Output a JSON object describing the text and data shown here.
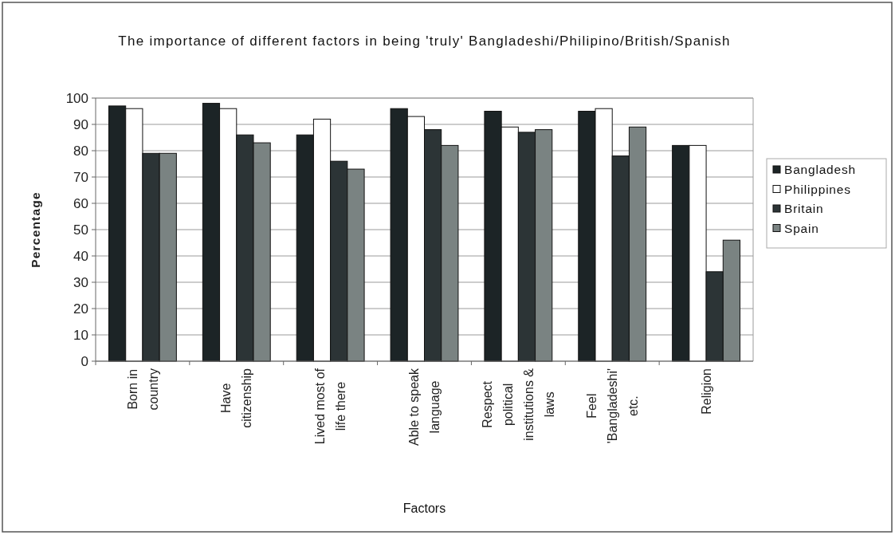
{
  "chart_data": {
    "type": "bar",
    "title": "The importance of different factors in being 'truly' Bangladeshi/Philipino/British/Spanish",
    "xlabel": "Factors",
    "ylabel": "Percentage",
    "categories": [
      "Born in\ncountry",
      "Have\ncitizenship",
      "Lived most of\nlife there",
      "Able to speak\nlanguage",
      "Respect\npolitical\ninstitutions &\nlaws",
      "Feel\n'Bangladeshi'\netc.",
      "Religion"
    ],
    "series": [
      {
        "name": "Bangladesh",
        "color": "#1c2426",
        "values": [
          97,
          98,
          86,
          96,
          95,
          95,
          82
        ]
      },
      {
        "name": "Philippines",
        "color": "#ffffff",
        "values": [
          96,
          96,
          92,
          93,
          89,
          96,
          82
        ]
      },
      {
        "name": "Britain",
        "color": "#2c3436",
        "values": [
          79,
          86,
          76,
          88,
          87,
          78,
          34
        ]
      },
      {
        "name": "Spain",
        "color": "#7a8382",
        "values": [
          79,
          83,
          73,
          82,
          88,
          89,
          46
        ]
      }
    ],
    "ylim": [
      0,
      100
    ],
    "yticks": [
      0,
      10,
      20,
      30,
      40,
      50,
      60,
      70,
      80,
      90,
      100
    ],
    "grid": "y",
    "legend": "right"
  }
}
